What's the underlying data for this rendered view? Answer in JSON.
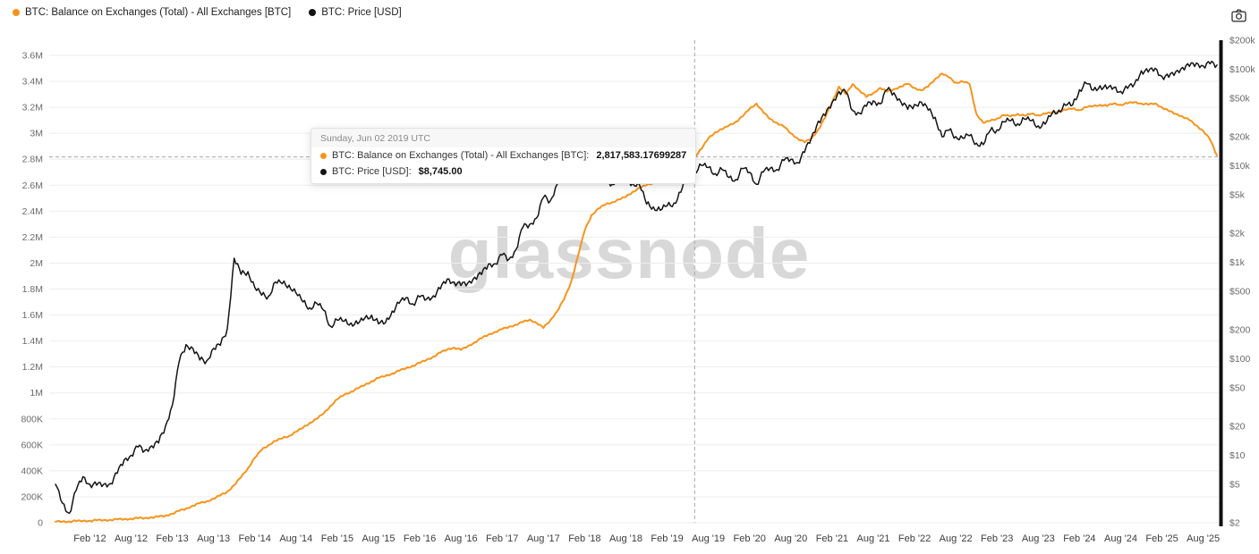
{
  "legend": {
    "items": [
      {
        "label": "BTC: Balance on Exchanges (Total) - All Exchanges [BTC]",
        "color": "#f7941c"
      },
      {
        "label": "BTC: Price [USD]",
        "color": "#141414"
      }
    ]
  },
  "header": {
    "camera_icon": "camera"
  },
  "watermark": "glassnode",
  "tooltip": {
    "date": "Sunday, Jun 02 2019 UTC",
    "rows": [
      {
        "label": "BTC: Balance on Exchanges (Total) - All Exchanges [BTC]:",
        "value": "2,817,583.17699287",
        "color": "#f7941c"
      },
      {
        "label": "BTC: Price [USD]:",
        "value": "$8,745.00",
        "color": "#141414"
      }
    ]
  },
  "chart_data": {
    "type": "line",
    "x_start": "2011-09",
    "x_interval": "monthly",
    "grid": "horizontal",
    "legend_position": "top-left",
    "crosshair": {
      "x_month": "2019-06",
      "date_label": "Sunday, Jun 02 2019 UTC",
      "balance_value": 2817583.17699287,
      "price_value": 8745.0
    },
    "left_axis": {
      "scale": "linear",
      "min": 0,
      "max": 3600000,
      "tick_labels": [
        "0",
        "200K",
        "400K",
        "600K",
        "800K",
        "1M",
        "1.2M",
        "1.4M",
        "1.6M",
        "1.8M",
        "2M",
        "2.2M",
        "2.4M",
        "2.6M",
        "2.8M",
        "3M",
        "3.2M",
        "3.4M",
        "3.6M"
      ],
      "tick_values": [
        0,
        200000,
        400000,
        600000,
        800000,
        1000000,
        1200000,
        1400000,
        1600000,
        1800000,
        2000000,
        2200000,
        2400000,
        2600000,
        2800000,
        3000000,
        3200000,
        3400000,
        3600000
      ]
    },
    "right_axis": {
      "scale": "log",
      "min": 2,
      "max": 200000,
      "tick_labels": [
        "$2",
        "$5",
        "$10",
        "$20",
        "$50",
        "$100",
        "$200",
        "$500",
        "$1k",
        "$2k",
        "$5k",
        "$10k",
        "$20k",
        "$50k",
        "$100k",
        "$200k"
      ],
      "tick_values": [
        2,
        5,
        10,
        20,
        50,
        100,
        200,
        500,
        1000,
        2000,
        5000,
        10000,
        20000,
        50000,
        100000,
        200000
      ]
    },
    "x_axis": {
      "tick_labels": [
        "Feb '12",
        "Aug '12",
        "Feb '13",
        "Aug '13",
        "Feb '14",
        "Aug '14",
        "Feb '15",
        "Aug '15",
        "Feb '16",
        "Aug '16",
        "Feb '17",
        "Aug '17",
        "Feb '18",
        "Aug '18",
        "Feb '19",
        "Aug '19",
        "Feb '20",
        "Aug '20",
        "Feb '21",
        "Aug '21",
        "Feb '22",
        "Aug '22",
        "Feb '23",
        "Aug '23",
        "Feb '24",
        "Aug '24",
        "Feb '25",
        "Aug '25"
      ]
    },
    "series": [
      {
        "id": "balance",
        "name": "BTC: Balance on Exchanges (Total) - All Exchanges [BTC]",
        "axis": "left",
        "color": "#f7941c",
        "width": 2,
        "jitter": 1.0,
        "values": [
          8000,
          9000,
          10000,
          12000,
          14000,
          16000,
          18000,
          20000,
          22000,
          25000,
          28000,
          31000,
          34000,
          37000,
          41000,
          45000,
          55000,
          70000,
          90000,
          110000,
          130000,
          150000,
          165000,
          185000,
          210000,
          240000,
          290000,
          350000,
          420000,
          500000,
          560000,
          600000,
          630000,
          650000,
          670000,
          700000,
          730000,
          770000,
          800000,
          840000,
          900000,
          950000,
          985000,
          1010000,
          1035000,
          1060000,
          1090000,
          1115000,
          1130000,
          1150000,
          1170000,
          1190000,
          1210000,
          1230000,
          1255000,
          1280000,
          1310000,
          1335000,
          1350000,
          1330000,
          1360000,
          1390000,
          1420000,
          1450000,
          1470000,
          1490000,
          1510000,
          1525000,
          1545000,
          1565000,
          1540000,
          1500000,
          1560000,
          1630000,
          1720000,
          1850000,
          2050000,
          2250000,
          2370000,
          2420000,
          2450000,
          2470000,
          2490000,
          2510000,
          2550000,
          2580000,
          2600000,
          2620000,
          2640000,
          2655000,
          2680000,
          2720000,
          2780000,
          2817583,
          2880000,
          2960000,
          3010000,
          3030000,
          3060000,
          3090000,
          3130000,
          3190000,
          3230000,
          3160000,
          3110000,
          3080000,
          3050000,
          3000000,
          2960000,
          2930000,
          2960000,
          3030000,
          3120000,
          3240000,
          3360000,
          3300000,
          3380000,
          3330000,
          3280000,
          3310000,
          3350000,
          3320000,
          3340000,
          3360000,
          3380000,
          3350000,
          3330000,
          3360000,
          3420000,
          3460000,
          3430000,
          3390000,
          3400000,
          3380000,
          3150000,
          3080000,
          3095000,
          3115000,
          3140000,
          3130000,
          3150000,
          3135000,
          3150000,
          3140000,
          3150000,
          3160000,
          3170000,
          3180000,
          3190000,
          3180000,
          3200000,
          3210000,
          3220000,
          3210000,
          3230000,
          3220000,
          3230000,
          3240000,
          3230000,
          3220000,
          3230000,
          3200000,
          3170000,
          3150000,
          3130000,
          3100000,
          3060000,
          3020000,
          2950000,
          2830000
        ]
      },
      {
        "id": "price",
        "name": "BTC: Price [USD]",
        "axis": "right",
        "color": "#141414",
        "width": 1.5,
        "jitter": 3.5,
        "values": [
          5.0,
          3.2,
          2.5,
          4.3,
          6.0,
          5.0,
          4.9,
          5.0,
          5.1,
          6.5,
          9.0,
          10.0,
          12.2,
          11.2,
          12.5,
          13.4,
          20,
          33,
          93,
          140,
          128,
          97,
          95,
          128,
          138,
          204,
          1100,
          750,
          800,
          550,
          455,
          445,
          625,
          600,
          580,
          480,
          388,
          338,
          375,
          320,
          218,
          252,
          245,
          235,
          230,
          262,
          284,
          230,
          236,
          312,
          375,
          430,
          370,
          437,
          415,
          450,
          530,
          670,
          625,
          575,
          610,
          700,
          745,
          960,
          965,
          1190,
          1080,
          1350,
          2300,
          2480,
          2870,
          4700,
          4340,
          6450,
          9900,
          13900,
          10200,
          10300,
          6930,
          9240,
          7500,
          6400,
          7730,
          7030,
          6600,
          6300,
          4020,
          3740,
          3460,
          3850,
          4100,
          5320,
          8560,
          8745,
          10090,
          9600,
          8300,
          9150,
          7550,
          7200,
          9350,
          8550,
          6440,
          8620,
          9450,
          9140,
          11350,
          11650,
          10780,
          13800,
          19700,
          29000,
          33100,
          45240,
          58800,
          57750,
          37330,
          35040,
          41460,
          47160,
          43790,
          61320,
          57000,
          46200,
          38480,
          43190,
          45540,
          37710,
          31790,
          19940,
          23300,
          20050,
          19430,
          20490,
          17160,
          16550,
          23140,
          23560,
          28480,
          29270,
          27220,
          30480,
          29230,
          25930,
          26960,
          34660,
          37720,
          42270,
          42580,
          61200,
          71330,
          60640,
          67530,
          62680,
          64620,
          58970,
          63330,
          70220,
          96450,
          93430,
          102400,
          84380,
          82550,
          94210,
          104600,
          107100,
          115800,
          108200,
          114000,
          110500
        ]
      }
    ]
  }
}
